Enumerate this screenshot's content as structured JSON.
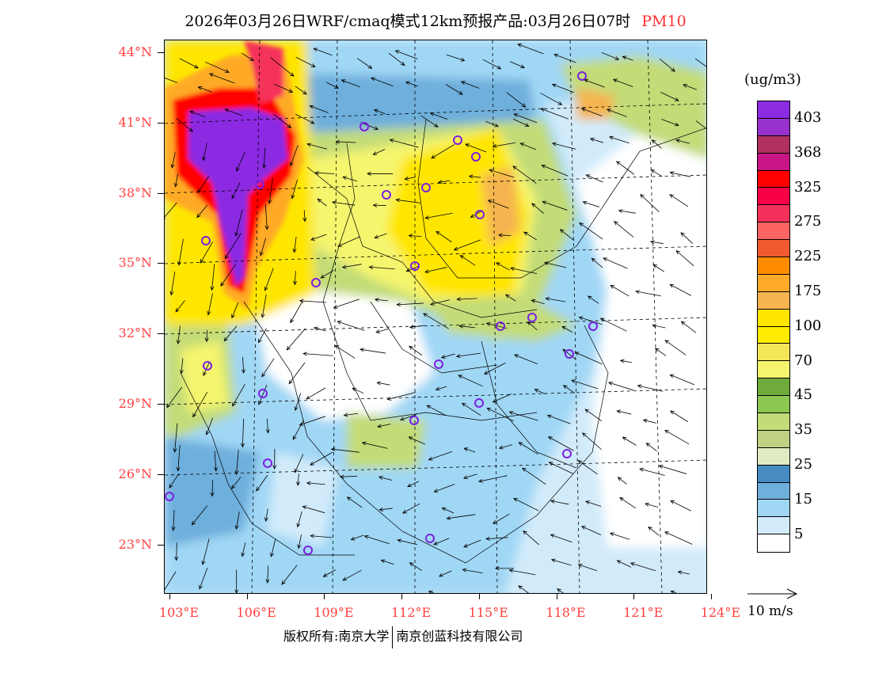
{
  "title": {
    "main": "2026年03月26日WRF/cmaq模式12km预报产品:03月26日07时",
    "variable": "PM10"
  },
  "axes": {
    "latitudes": [
      "44°N",
      "41°N",
      "38°N",
      "35°N",
      "32°N",
      "29°N",
      "26°N",
      "23°N"
    ],
    "longitudes": [
      "103°E",
      "106°E",
      "109°E",
      "112°E",
      "115°E",
      "118°E",
      "121°E",
      "124°E"
    ]
  },
  "legend": {
    "unit": "(ug/m3)",
    "colors": [
      "#8b2be2",
      "#9932cc",
      "#b03060",
      "#c71585",
      "#ff0000",
      "#f80048",
      "#f5305a",
      "#ff6464",
      "#f05a30",
      "#ff8c00",
      "#ffaa28",
      "#f5b450",
      "#ffe600",
      "#ffeb00",
      "#f5e65a",
      "#f5f56e",
      "#6eaa3c",
      "#8cc850",
      "#c3dc78",
      "#bed282",
      "#e1ebc3",
      "#468cc3",
      "#6eafdc",
      "#a0d7f5",
      "#d2ebfa",
      "#ffffff"
    ],
    "labels": [
      "403",
      "368",
      "325",
      "275",
      "225",
      "175",
      "100",
      "70",
      "45",
      "35",
      "25",
      "15",
      "5"
    ],
    "wind_reference": "10 m/s"
  },
  "footer": {
    "copyright": "版权所有:南京大学",
    "company": "南京创蓝科技有限公司"
  }
}
